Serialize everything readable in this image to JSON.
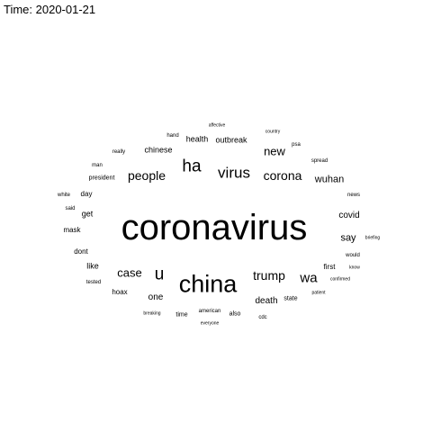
{
  "title": "Time: 2020-01-21",
  "words": [
    "coronavirus",
    "china",
    "ha",
    "virus",
    "corona",
    "people",
    "u",
    "trump",
    "wa",
    "case",
    "new",
    "wuhan",
    "say",
    "covid",
    "death",
    "outbreak",
    "chinese",
    "health",
    "one",
    "mask",
    "get",
    "like",
    "hoax",
    "first",
    "dont",
    "president",
    "day",
    "time",
    "also",
    "state",
    "spread",
    "psa",
    "said",
    "white",
    "news",
    "would",
    "know",
    "confirmed",
    "patient",
    "cdc",
    "american",
    "everyone",
    "breaking",
    "tested",
    "briefing",
    "man",
    "really",
    "hand",
    "country",
    "affective"
  ],
  "colors": {
    "background": "#ffffff",
    "text": "#000000"
  }
}
